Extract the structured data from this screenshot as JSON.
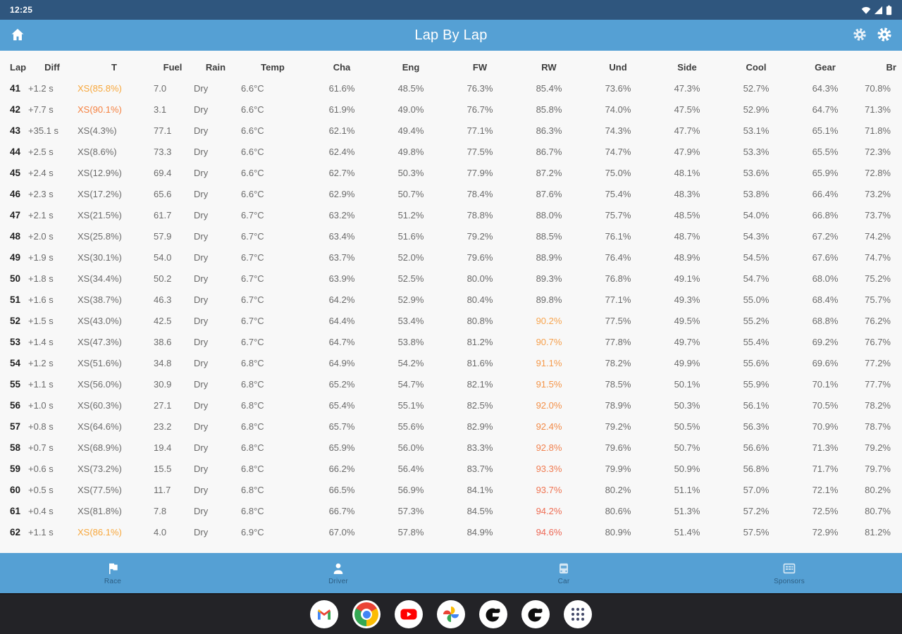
{
  "status_bar": {
    "time": "12:25",
    "icons": [
      "wifi-icon",
      "cellular-signal-icon",
      "battery-icon"
    ]
  },
  "app_bar": {
    "title": "Lap By Lap",
    "home_icon": "home-icon",
    "action_icons": [
      "gear-icon",
      "gear-icon"
    ]
  },
  "table": {
    "columns": [
      "Lap",
      "Diff",
      "T",
      "Fuel",
      "Rain",
      "Temp",
      "Cha",
      "Eng",
      "FW",
      "RW",
      "Und",
      "Side",
      "Cool",
      "Gear",
      "Br"
    ],
    "rows": [
      {
        "c": [
          "41",
          "+1.2 s",
          "XS(85.8%)",
          "7.0",
          "Dry",
          "6.6°C",
          "61.6%",
          "48.5%",
          "76.3%",
          "85.4%",
          "73.6%",
          "47.3%",
          "52.7%",
          "64.3%",
          "70.8%"
        ],
        "hl": {
          "2": "#F7A73B"
        }
      },
      {
        "c": [
          "42",
          "+7.7 s",
          "XS(90.1%)",
          "3.1",
          "Dry",
          "6.6°C",
          "61.9%",
          "49.0%",
          "76.7%",
          "85.8%",
          "74.0%",
          "47.5%",
          "52.9%",
          "64.7%",
          "71.3%"
        ],
        "hl": {
          "2": "#F58140"
        }
      },
      {
        "c": [
          "43",
          "+35.1 s",
          "XS(4.3%)",
          "77.1",
          "Dry",
          "6.6°C",
          "62.1%",
          "49.4%",
          "77.1%",
          "86.3%",
          "74.3%",
          "47.7%",
          "53.1%",
          "65.1%",
          "71.8%"
        ],
        "hl": {}
      },
      {
        "c": [
          "44",
          "+2.5 s",
          "XS(8.6%)",
          "73.3",
          "Dry",
          "6.6°C",
          "62.4%",
          "49.8%",
          "77.5%",
          "86.7%",
          "74.7%",
          "47.9%",
          "53.3%",
          "65.5%",
          "72.3%"
        ],
        "hl": {}
      },
      {
        "c": [
          "45",
          "+2.4 s",
          "XS(12.9%)",
          "69.4",
          "Dry",
          "6.6°C",
          "62.7%",
          "50.3%",
          "77.9%",
          "87.2%",
          "75.0%",
          "48.1%",
          "53.6%",
          "65.9%",
          "72.8%"
        ],
        "hl": {}
      },
      {
        "c": [
          "46",
          "+2.3 s",
          "XS(17.2%)",
          "65.6",
          "Dry",
          "6.6°C",
          "62.9%",
          "50.7%",
          "78.4%",
          "87.6%",
          "75.4%",
          "48.3%",
          "53.8%",
          "66.4%",
          "73.2%"
        ],
        "hl": {}
      },
      {
        "c": [
          "47",
          "+2.1 s",
          "XS(21.5%)",
          "61.7",
          "Dry",
          "6.7°C",
          "63.2%",
          "51.2%",
          "78.8%",
          "88.0%",
          "75.7%",
          "48.5%",
          "54.0%",
          "66.8%",
          "73.7%"
        ],
        "hl": {}
      },
      {
        "c": [
          "48",
          "+2.0 s",
          "XS(25.8%)",
          "57.9",
          "Dry",
          "6.7°C",
          "63.4%",
          "51.6%",
          "79.2%",
          "88.5%",
          "76.1%",
          "48.7%",
          "54.3%",
          "67.2%",
          "74.2%"
        ],
        "hl": {}
      },
      {
        "c": [
          "49",
          "+1.9 s",
          "XS(30.1%)",
          "54.0",
          "Dry",
          "6.7°C",
          "63.7%",
          "52.0%",
          "79.6%",
          "88.9%",
          "76.4%",
          "48.9%",
          "54.5%",
          "67.6%",
          "74.7%"
        ],
        "hl": {}
      },
      {
        "c": [
          "50",
          "+1.8 s",
          "XS(34.4%)",
          "50.2",
          "Dry",
          "6.7°C",
          "63.9%",
          "52.5%",
          "80.0%",
          "89.3%",
          "76.8%",
          "49.1%",
          "54.7%",
          "68.0%",
          "75.2%"
        ],
        "hl": {}
      },
      {
        "c": [
          "51",
          "+1.6 s",
          "XS(38.7%)",
          "46.3",
          "Dry",
          "6.7°C",
          "64.2%",
          "52.9%",
          "80.4%",
          "89.8%",
          "77.1%",
          "49.3%",
          "55.0%",
          "68.4%",
          "75.7%"
        ],
        "hl": {}
      },
      {
        "c": [
          "52",
          "+1.5 s",
          "XS(43.0%)",
          "42.5",
          "Dry",
          "6.7°C",
          "64.4%",
          "53.4%",
          "80.8%",
          "90.2%",
          "77.5%",
          "49.5%",
          "55.2%",
          "68.8%",
          "76.2%"
        ],
        "hl": {
          "9": "#F7A54F"
        }
      },
      {
        "c": [
          "53",
          "+1.4 s",
          "XS(47.3%)",
          "38.6",
          "Dry",
          "6.7°C",
          "64.7%",
          "53.8%",
          "81.2%",
          "90.7%",
          "77.8%",
          "49.7%",
          "55.4%",
          "69.2%",
          "76.7%"
        ],
        "hl": {
          "9": "#F6A04D"
        }
      },
      {
        "c": [
          "54",
          "+1.2 s",
          "XS(51.6%)",
          "34.8",
          "Dry",
          "6.8°C",
          "64.9%",
          "54.2%",
          "81.6%",
          "91.1%",
          "78.2%",
          "49.9%",
          "55.6%",
          "69.6%",
          "77.2%"
        ],
        "hl": {
          "9": "#F59A4B"
        }
      },
      {
        "c": [
          "55",
          "+1.1 s",
          "XS(56.0%)",
          "30.9",
          "Dry",
          "6.8°C",
          "65.2%",
          "54.7%",
          "82.1%",
          "91.5%",
          "78.5%",
          "50.1%",
          "55.9%",
          "70.1%",
          "77.7%"
        ],
        "hl": {
          "9": "#F49549"
        }
      },
      {
        "c": [
          "56",
          "+1.0 s",
          "XS(60.3%)",
          "27.1",
          "Dry",
          "6.8°C",
          "65.4%",
          "55.1%",
          "82.5%",
          "92.0%",
          "78.9%",
          "50.3%",
          "56.1%",
          "70.5%",
          "78.2%"
        ],
        "hl": {
          "9": "#F39048"
        }
      },
      {
        "c": [
          "57",
          "+0.8 s",
          "XS(64.6%)",
          "23.2",
          "Dry",
          "6.8°C",
          "65.7%",
          "55.6%",
          "82.9%",
          "92.4%",
          "79.2%",
          "50.5%",
          "56.3%",
          "70.9%",
          "78.7%"
        ],
        "hl": {
          "9": "#F28A47"
        }
      },
      {
        "c": [
          "58",
          "+0.7 s",
          "XS(68.9%)",
          "19.4",
          "Dry",
          "6.8°C",
          "65.9%",
          "56.0%",
          "83.3%",
          "92.8%",
          "79.6%",
          "50.7%",
          "56.6%",
          "71.3%",
          "79.2%"
        ],
        "hl": {
          "9": "#F1824F"
        }
      },
      {
        "c": [
          "59",
          "+0.6 s",
          "XS(73.2%)",
          "15.5",
          "Dry",
          "6.8°C",
          "66.2%",
          "56.4%",
          "83.7%",
          "93.3%",
          "79.9%",
          "50.9%",
          "56.8%",
          "71.7%",
          "79.7%"
        ],
        "hl": {
          "9": "#F07B51"
        }
      },
      {
        "c": [
          "60",
          "+0.5 s",
          "XS(77.5%)",
          "11.7",
          "Dry",
          "6.8°C",
          "66.5%",
          "56.9%",
          "84.1%",
          "93.7%",
          "80.2%",
          "51.1%",
          "57.0%",
          "72.1%",
          "80.2%"
        ],
        "hl": {
          "9": "#EF7452"
        }
      },
      {
        "c": [
          "61",
          "+0.4 s",
          "XS(81.8%)",
          "7.8",
          "Dry",
          "6.8°C",
          "66.7%",
          "57.3%",
          "84.5%",
          "94.2%",
          "80.6%",
          "51.3%",
          "57.2%",
          "72.5%",
          "80.7%"
        ],
        "hl": {
          "9": "#EE6D53"
        }
      },
      {
        "c": [
          "62",
          "+1.1 s",
          "XS(86.1%)",
          "4.0",
          "Dry",
          "6.9°C",
          "67.0%",
          "57.8%",
          "84.9%",
          "94.6%",
          "80.9%",
          "51.4%",
          "57.5%",
          "72.9%",
          "81.2%"
        ],
        "hl": {
          "2": "#F7A73B",
          "9": "#ED6754"
        }
      }
    ]
  },
  "bottom_nav": {
    "items": [
      {
        "label": "Race",
        "icon": "flag-icon"
      },
      {
        "label": "Driver",
        "icon": "person-icon"
      },
      {
        "label": "Car",
        "icon": "car-icon"
      },
      {
        "label": "Sponsors",
        "icon": "sponsors-icon"
      }
    ]
  },
  "dock": {
    "apps": [
      {
        "icon": "gmail-icon"
      },
      {
        "icon": "chrome-icon"
      },
      {
        "icon": "youtube-icon"
      },
      {
        "icon": "photos-icon"
      },
      {
        "icon": "game-app-icon"
      },
      {
        "icon": "game-app-icon"
      },
      {
        "icon": "app-drawer-icon"
      }
    ]
  },
  "colors": {
    "status_bar_bg": "#2F567E",
    "app_bar_bg": "#55A0D4",
    "table_bg": "#F8F8F8",
    "taskbar_bg": "#232327",
    "header_text": "#3C3C3C",
    "cell_text": "#6B6B6B",
    "lap_text": "#1F1F1F",
    "nav_label": "#2D5E83",
    "accent_orange": "#F7A73B",
    "accent_red_orange": "#ED6754"
  }
}
